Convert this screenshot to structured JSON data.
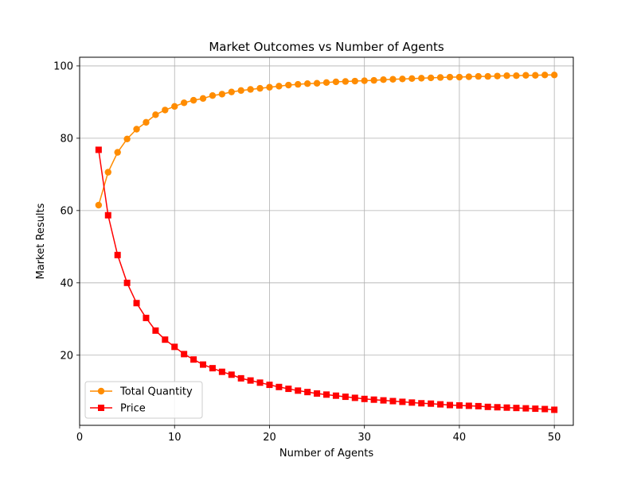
{
  "chart_data": {
    "type": "line",
    "title": "Market Outcomes vs Number of Agents",
    "xlabel": "Number of Agents",
    "ylabel": "Market Results",
    "xlim": [
      0,
      52
    ],
    "ylim": [
      0.6,
      102.4
    ],
    "xticks": [
      0,
      10,
      20,
      30,
      40,
      50
    ],
    "yticks": [
      20,
      40,
      60,
      80,
      100
    ],
    "grid": true,
    "legend_position": "lower-left",
    "x": [
      2,
      3,
      4,
      5,
      6,
      7,
      8,
      9,
      10,
      11,
      12,
      13,
      14,
      15,
      16,
      17,
      18,
      19,
      20,
      21,
      22,
      23,
      24,
      25,
      26,
      27,
      28,
      29,
      30,
      31,
      32,
      33,
      34,
      35,
      36,
      37,
      38,
      39,
      40,
      41,
      42,
      43,
      44,
      45,
      46,
      47,
      48,
      49,
      50
    ],
    "series": [
      {
        "name": "Total Quantity",
        "color": "#ff8c00",
        "marker": "circle",
        "values": [
          61.5,
          70.6,
          76.1,
          79.8,
          82.5,
          84.4,
          86.5,
          87.8,
          88.8,
          89.8,
          90.5,
          91.0,
          91.8,
          92.2,
          92.8,
          93.2,
          93.5,
          93.8,
          94.1,
          94.4,
          94.7,
          94.9,
          95.1,
          95.2,
          95.4,
          95.6,
          95.7,
          95.8,
          95.9,
          96.0,
          96.2,
          96.3,
          96.4,
          96.5,
          96.6,
          96.7,
          96.8,
          96.9,
          96.9,
          97.0,
          97.1,
          97.1,
          97.2,
          97.3,
          97.3,
          97.4,
          97.4,
          97.5,
          97.5
        ]
      },
      {
        "name": "Price",
        "color": "#ff0000",
        "marker": "square",
        "values": [
          76.8,
          58.7,
          47.7,
          40.0,
          34.4,
          30.3,
          26.8,
          24.3,
          22.3,
          20.3,
          18.8,
          17.4,
          16.4,
          15.4,
          14.6,
          13.6,
          13.0,
          12.4,
          11.8,
          11.2,
          10.7,
          10.2,
          9.8,
          9.4,
          9.1,
          8.8,
          8.5,
          8.2,
          7.9,
          7.7,
          7.5,
          7.3,
          7.1,
          6.9,
          6.7,
          6.6,
          6.4,
          6.2,
          6.1,
          6.0,
          5.9,
          5.7,
          5.6,
          5.5,
          5.4,
          5.3,
          5.2,
          5.1,
          4.9
        ]
      }
    ]
  }
}
